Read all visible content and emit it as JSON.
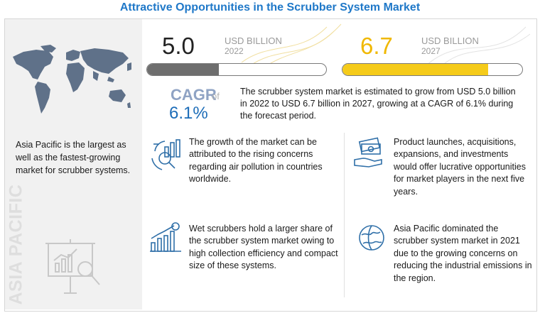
{
  "title": "Attractive Opportunities in the Scrubber System Market",
  "market_2022": {
    "value": "5.0",
    "unit": "USD BILLION",
    "year": "2022",
    "progress": 0.4
  },
  "market_2027": {
    "value": "6.7",
    "unit": "USD BILLION",
    "year": "2027",
    "progress": 0.81
  },
  "cagr": {
    "label": "CAGR",
    "of": "of",
    "value": "6.1%"
  },
  "summary": "The scrubber system market is estimated to grow from USD 5.0 billion in 2022 to USD 6.7 billion in 2027, growing at a CAGR of 6.1% during the forecast period.",
  "region": {
    "text": "Asia Pacific is the largest as well as the fastest-growing market for scrubber systems.",
    "vertical_label": "ASIA PACIFIC"
  },
  "insights": [
    {
      "icon": "growth-analysis-icon",
      "text": "The growth of the market can be attributed to the rising concerns regarding air pollution in countries worldwide."
    },
    {
      "icon": "money-hand-icon",
      "text": "Product launches, acquisitions, expansions, and investments  would offer lucrative opportunities for market players in the next five years."
    },
    {
      "icon": "rising-dollar-chart-icon",
      "text": "Wet scrubbers hold a larger share of the scrubber system market owing to high collection efficiency and compact size of these systems."
    },
    {
      "icon": "globe-icon",
      "text": "Asia Pacific dominated the scrubber system market in 2021 due to the growing concerns on reducing the industrial emissions in the region."
    }
  ],
  "colors": {
    "title": "#1f78c8",
    "bar_2022": "#6e6e6e",
    "bar_2027": "#f5cb1a",
    "value_2027": "#f0b800",
    "cagr_value": "#1d6db8",
    "icon_blue": "#2f6fa8"
  }
}
